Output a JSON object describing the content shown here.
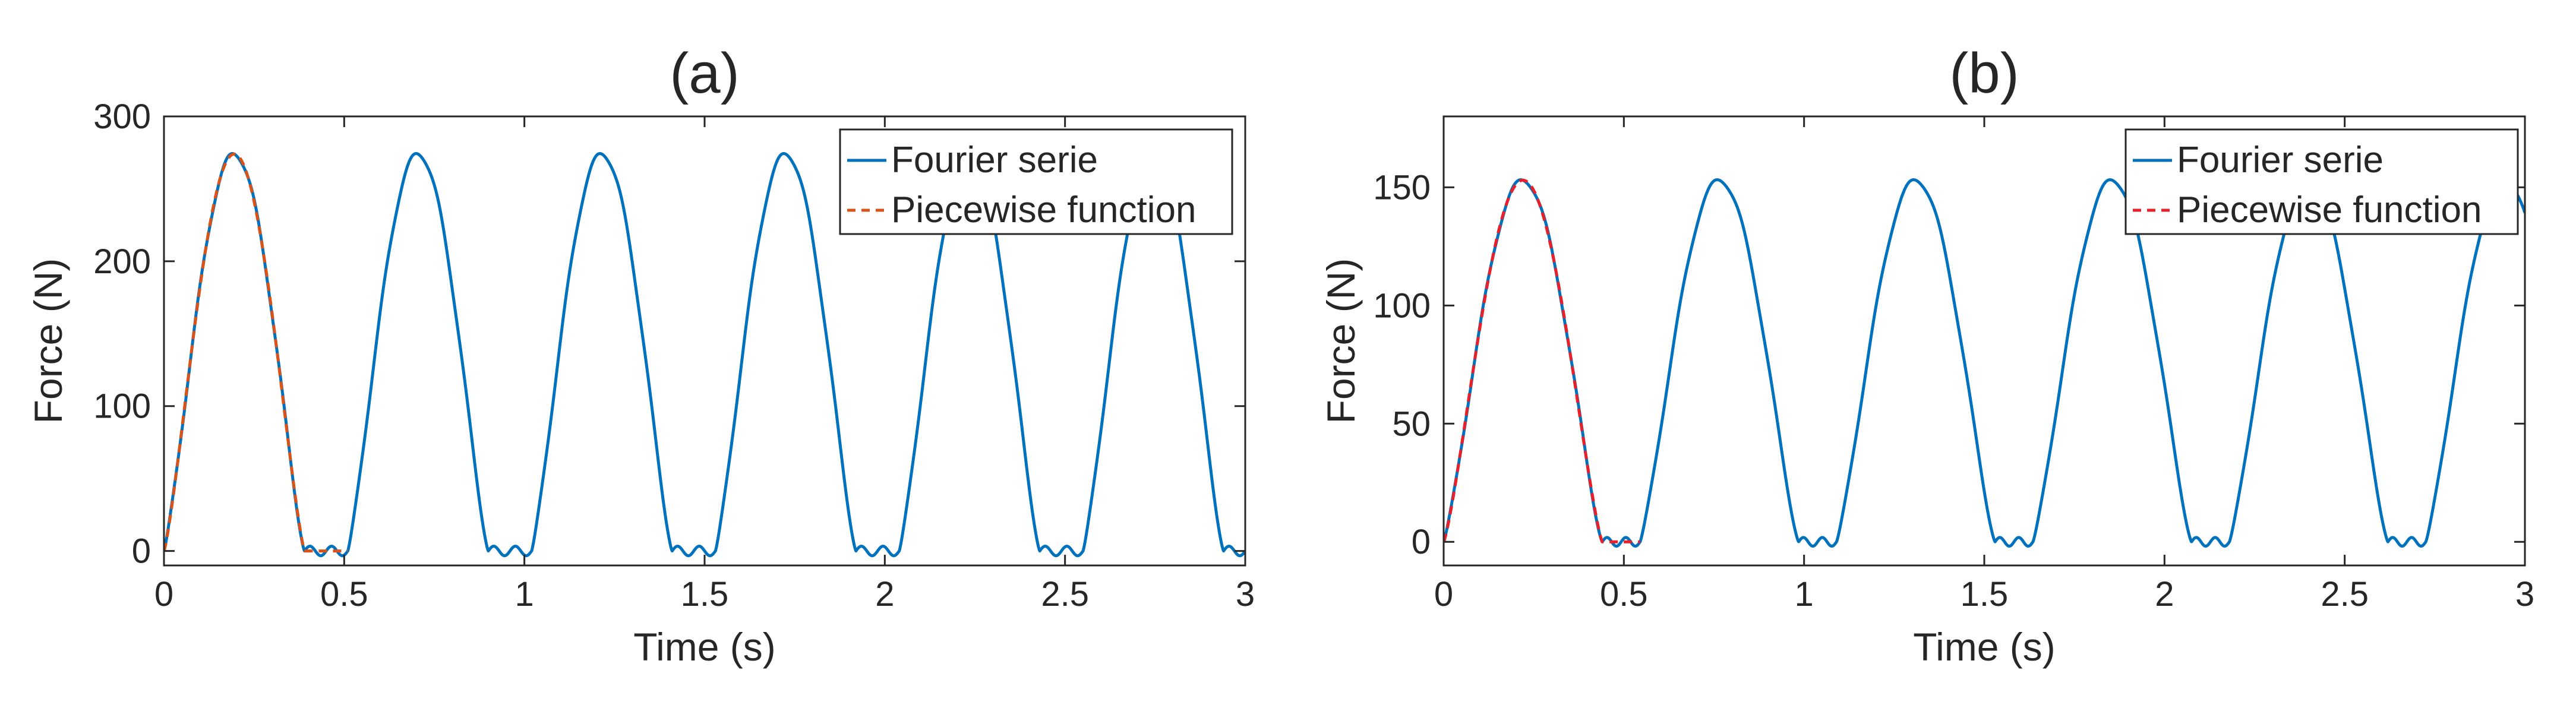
{
  "chart_data": [
    {
      "type": "line",
      "title": "(a)",
      "xlabel": "Time (s)",
      "ylabel": "Force (N)",
      "xlim": [
        0,
        3
      ],
      "ylim": [
        -10,
        300
      ],
      "xticks": [
        0,
        0.5,
        1,
        1.5,
        2,
        2.5,
        3
      ],
      "xtick_labels": [
        "0",
        "0.5",
        "1",
        "1.5",
        "2",
        "2.5",
        "3"
      ],
      "yticks": [
        0,
        100,
        200,
        300
      ],
      "ytick_labels": [
        "0",
        "100",
        "200",
        "300"
      ],
      "legend_position": "top-right",
      "grid": false,
      "series": [
        {
          "name": "Fourier serie",
          "style": "solid",
          "color": "#0072BD",
          "period": 0.51,
          "peak": 274,
          "pulse_duration": 0.39,
          "x_range": [
            0,
            3
          ]
        },
        {
          "name": "Piecewise function",
          "style": "dashed",
          "color": "#D95319",
          "period": 0.51,
          "peak": 274,
          "pulse_duration": 0.39,
          "x_range": [
            0,
            0.51
          ]
        }
      ]
    },
    {
      "type": "line",
      "title": "(b)",
      "xlabel": "Time (s)",
      "ylabel": "Force (N)",
      "xlim": [
        0,
        3
      ],
      "ylim": [
        -10,
        180
      ],
      "xticks": [
        0,
        0.5,
        1,
        1.5,
        2,
        2.5,
        3
      ],
      "xtick_labels": [
        "0",
        "0.5",
        "1",
        "1.5",
        "2",
        "2.5",
        "3"
      ],
      "yticks": [
        0,
        50,
        100,
        150
      ],
      "ytick_labels": [
        "0",
        "50",
        "100",
        "150"
      ],
      "legend_position": "top-right",
      "grid": false,
      "series": [
        {
          "name": "Fourier serie",
          "style": "solid",
          "color": "#0072BD",
          "period": 0.545,
          "peak": 153,
          "pulse_duration": 0.44,
          "x_range": [
            0,
            3
          ]
        },
        {
          "name": "Piecewise function",
          "style": "dashed",
          "color": "#E8202A",
          "period": 0.545,
          "peak": 153,
          "pulse_duration": 0.44,
          "x_range": [
            0,
            0.545
          ]
        }
      ]
    }
  ]
}
